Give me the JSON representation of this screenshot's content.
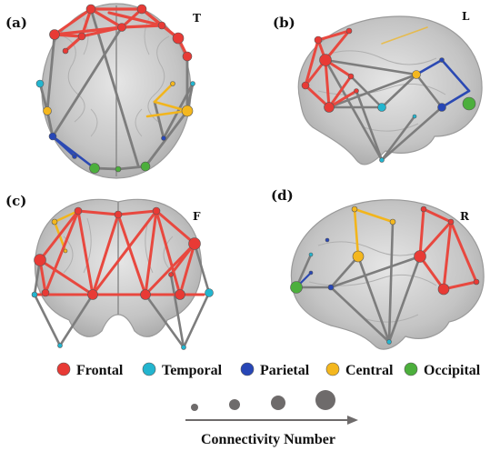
{
  "panels": [
    {
      "id": "a",
      "label": "(a)",
      "view": "T"
    },
    {
      "id": "b",
      "label": "(b)",
      "view": "L"
    },
    {
      "id": "c",
      "label": "(c)",
      "view": "F"
    },
    {
      "id": "d",
      "label": "(d)",
      "view": "R"
    }
  ],
  "legend": {
    "items": [
      {
        "label": "Frontal",
        "color": "#e83a35"
      },
      {
        "label": "Temporal",
        "color": "#23b5cf"
      },
      {
        "label": "Parietal",
        "color": "#2746b6"
      },
      {
        "label": "Central",
        "color": "#f4b71e"
      },
      {
        "label": "Occipital",
        "color": "#4caf3c"
      }
    ]
  },
  "scale": {
    "title": "Connectivity Number",
    "marker_color": "#6e6b6b"
  },
  "colors": {
    "frontal_edge": "#e8483f",
    "central_edge": "#f2b51c",
    "parietal_edge": "#2b49b3",
    "other_edge": "#7d7d7d"
  }
}
